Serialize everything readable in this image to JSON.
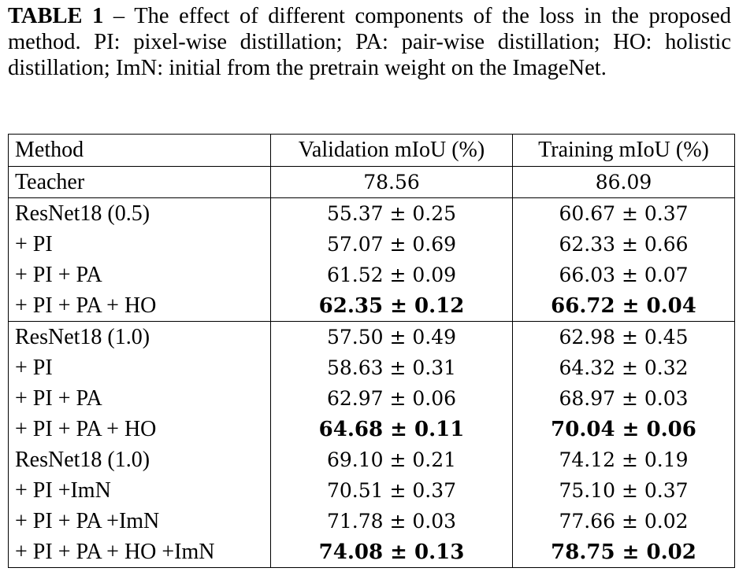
{
  "caption": {
    "label": "TABLE 1",
    "text": " – The effect of different components of the loss in the proposed method. PI: pixel-wise distillation; PA: pair-wise distillation; HO: holistic distillation; ImN: initial from the pretrain weight on the ImageNet."
  },
  "table": {
    "headers": [
      "Method",
      "Validation mIoU (%)",
      "Training mIoU (%)"
    ],
    "rows": [
      {
        "method": "Teacher",
        "val": "78.56",
        "train": "86.09",
        "bold": false,
        "rule_after": true
      },
      {
        "method": "ResNet18 (0.5)",
        "val": "55.37 ± 0.25",
        "train": "60.67 ± 0.37",
        "bold": false,
        "rule_after": false
      },
      {
        "method": "+ PI",
        "val": "57.07 ± 0.69",
        "train": "62.33 ± 0.66",
        "bold": false,
        "rule_after": false
      },
      {
        "method": "+ PI + PA",
        "val": "61.52 ± 0.09",
        "train": "66.03 ± 0.07",
        "bold": false,
        "rule_after": false
      },
      {
        "method": "+ PI + PA + HO",
        "val": "62.35 ± 0.12",
        "train": "66.72 ± 0.04",
        "bold": true,
        "rule_after": true
      },
      {
        "method": "ResNet18 (1.0)",
        "val": "57.50 ± 0.49",
        "train": "62.98 ± 0.45",
        "bold": false,
        "rule_after": false
      },
      {
        "method": "+ PI",
        "val": "58.63 ± 0.31",
        "train": "64.32 ± 0.32",
        "bold": false,
        "rule_after": false
      },
      {
        "method": "+ PI + PA",
        "val": "62.97 ± 0.06",
        "train": "68.97 ± 0.03",
        "bold": false,
        "rule_after": false
      },
      {
        "method": "+ PI + PA + HO",
        "val": "64.68 ± 0.11",
        "train": "70.04 ± 0.06",
        "bold": true,
        "rule_after": false
      },
      {
        "method": "ResNet18 (1.0)",
        "val": "69.10 ± 0.21",
        "train": "74.12 ± 0.19",
        "bold": false,
        "rule_after": false
      },
      {
        "method": "+ PI +ImN",
        "val": "70.51 ± 0.37",
        "train": "75.10 ± 0.37",
        "bold": false,
        "rule_after": false
      },
      {
        "method": "+ PI + PA +ImN",
        "val": "71.78 ± 0.03",
        "train": "77.66 ± 0.02",
        "bold": false,
        "rule_after": false
      },
      {
        "method": "+ PI + PA + HO +ImN",
        "val": "74.08 ± 0.13",
        "train": "78.75 ± 0.02",
        "bold": true,
        "rule_after": false
      }
    ]
  }
}
